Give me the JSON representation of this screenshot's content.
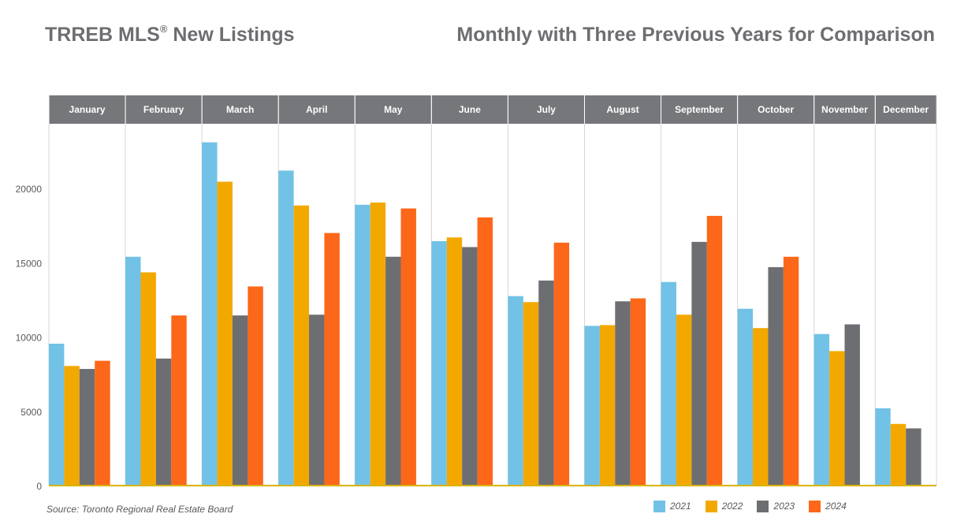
{
  "header": {
    "title_main": "TRREB MLS",
    "title_reg": "®",
    "title_rest": " New Listings",
    "subtitle": "Monthly with Three Previous Years for Comparison"
  },
  "source": "Source: Toronto Regional Real Estate Board",
  "colors": {
    "2021": "#71c2e6",
    "2022": "#f3a800",
    "2023": "#6d6e71",
    "2024": "#fc6719",
    "header_band": "#75777a",
    "baseline": "#d9b400"
  },
  "chart_data": {
    "type": "bar",
    "categories": [
      "January",
      "February",
      "March",
      "April",
      "May",
      "June",
      "July",
      "August",
      "September",
      "October",
      "November",
      "December"
    ],
    "series": [
      {
        "name": "2021",
        "values": [
          9550,
          15400,
          23100,
          21200,
          18900,
          16450,
          12750,
          10750,
          13700,
          11900,
          10200,
          5200
        ]
      },
      {
        "name": "2022",
        "values": [
          8050,
          14350,
          20450,
          18850,
          19050,
          16700,
          12350,
          10800,
          11500,
          10600,
          9050,
          4150
        ]
      },
      {
        "name": "2023",
        "values": [
          7850,
          8550,
          11450,
          11500,
          15400,
          16050,
          13800,
          12400,
          16400,
          14700,
          10850,
          3850
        ]
      },
      {
        "name": "2024",
        "values": [
          8400,
          11450,
          13400,
          17000,
          18650,
          18050,
          16350,
          12600,
          18150,
          15400,
          null,
          null
        ]
      }
    ],
    "ylim": [
      0,
      25000
    ],
    "yticks": [
      "0",
      "5000",
      "10000",
      "15000",
      "20000"
    ],
    "ytick_values": [
      0,
      5000,
      10000,
      15000,
      20000
    ],
    "grid": false,
    "legend": "bottom-right"
  }
}
